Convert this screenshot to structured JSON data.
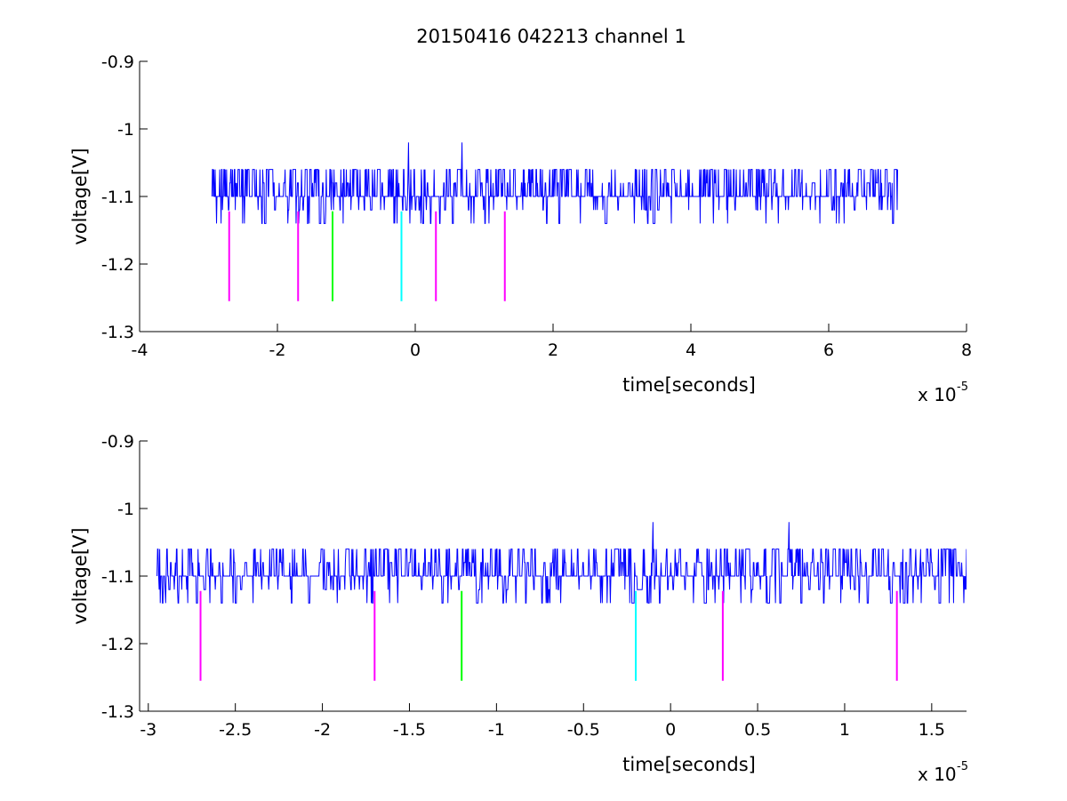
{
  "figure_title": "20150416 042213 channel 1",
  "colors": {
    "signal": "#0000ff",
    "magenta": "#ff00ff",
    "green": "#00ff00",
    "cyan": "#00ffff",
    "axes": "#000000",
    "background": "#ffffff"
  },
  "chart_data": [
    {
      "type": "line",
      "title": "20150416 042213 channel 1",
      "xlabel": "time[seconds]",
      "ylabel": "voltage[V]",
      "x_exponent_label": "x 10",
      "x_exponent": "-5",
      "xlim": [
        -4e-05,
        8e-05
      ],
      "ylim": [
        -1.3,
        -0.9
      ],
      "x_ticks": [
        -4e-05,
        -2e-05,
        0,
        2e-05,
        4e-05,
        6e-05,
        8e-05
      ],
      "x_tick_labels": [
        "-4",
        "-2",
        "0",
        "2",
        "4",
        "6",
        "8"
      ],
      "y_ticks": [
        -1.3,
        -1.2,
        -1.1,
        -1.0,
        -0.9
      ],
      "y_tick_labels": [
        "-1.3",
        "-1.2",
        "-1.1",
        "-1",
        "-0.9"
      ],
      "grid": false,
      "legend": "none",
      "signal": {
        "x_range": [
          -2.95e-05,
          7e-05
        ],
        "baseline": -1.1,
        "levels": [
          -1.14,
          -1.12,
          -1.1,
          -1.08,
          -1.06
        ],
        "peaks": [
          {
            "x": -1e-06,
            "y": -1.02
          },
          {
            "x": 6.8e-06,
            "y": -1.02
          }
        ]
      },
      "markers": {
        "y_range": [
          -1.255,
          -1.122
        ],
        "items": [
          {
            "x": -2.7e-05,
            "color": "magenta"
          },
          {
            "x": -1.7e-05,
            "color": "magenta"
          },
          {
            "x": -1.2e-05,
            "color": "green"
          },
          {
            "x": -2e-06,
            "color": "cyan"
          },
          {
            "x": 3e-06,
            "color": "magenta"
          },
          {
            "x": 1.3e-05,
            "color": "magenta"
          }
        ]
      }
    },
    {
      "type": "line",
      "title": "",
      "xlabel": "time[seconds]",
      "ylabel": "voltage[V]",
      "x_exponent_label": "x 10",
      "x_exponent": "-5",
      "xlim": [
        -3.05e-05,
        1.7e-05
      ],
      "ylim": [
        -1.3,
        -0.9
      ],
      "x_ticks": [
        -3e-05,
        -2.5e-05,
        -2e-05,
        -1.5e-05,
        -1e-05,
        -5e-06,
        0,
        5e-06,
        1e-05,
        1.5e-05
      ],
      "x_tick_labels": [
        "-3",
        "-2.5",
        "-2",
        "-1.5",
        "-1",
        "-0.5",
        "0",
        "0.5",
        "1",
        "1.5"
      ],
      "y_ticks": [
        -1.3,
        -1.2,
        -1.1,
        -1.0,
        -0.9
      ],
      "y_tick_labels": [
        "-1.3",
        "-1.2",
        "-1.1",
        "-1",
        "-0.9"
      ],
      "grid": false,
      "legend": "none",
      "signal": {
        "x_range": [
          -2.95e-05,
          1.7e-05
        ],
        "baseline": -1.1,
        "levels": [
          -1.14,
          -1.12,
          -1.1,
          -1.08,
          -1.06
        ],
        "peaks": [
          {
            "x": -1e-06,
            "y": -1.02
          },
          {
            "x": 6.8e-06,
            "y": -1.02
          }
        ]
      },
      "markers": {
        "y_range": [
          -1.255,
          -1.122
        ],
        "items": [
          {
            "x": -2.7e-05,
            "color": "magenta"
          },
          {
            "x": -1.7e-05,
            "color": "magenta"
          },
          {
            "x": -1.2e-05,
            "color": "green"
          },
          {
            "x": -2e-06,
            "color": "cyan"
          },
          {
            "x": 3e-06,
            "color": "magenta"
          },
          {
            "x": 1.3e-05,
            "color": "magenta"
          }
        ]
      }
    }
  ]
}
